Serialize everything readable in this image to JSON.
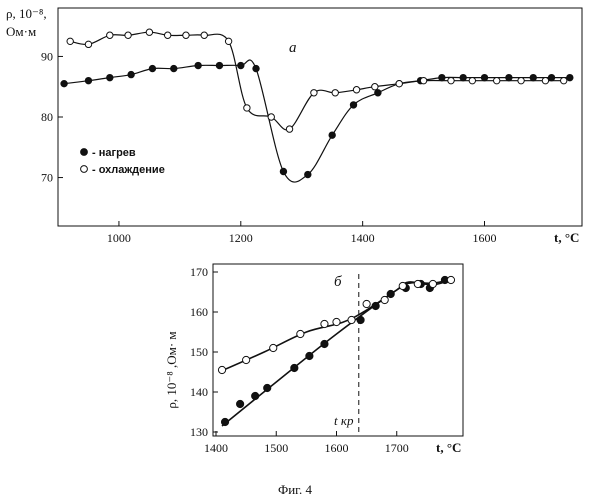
{
  "chart_data": [
    {
      "type": "scatter",
      "panel_label": "a",
      "ylabel_line1": "ρ, 10⁻⁸,",
      "ylabel_line2": "Ом·м",
      "xlabel": "t, °C",
      "xlim": [
        900,
        1760
      ],
      "ylim": [
        62,
        98
      ],
      "xticks": [
        1000,
        1200,
        1400,
        1600
      ],
      "yticks": [
        70,
        80,
        90
      ],
      "grid": false,
      "legend": [
        {
          "marker": "filled",
          "label": "- нагрев"
        },
        {
          "marker": "open",
          "label": "- охлаждение"
        }
      ],
      "series": [
        {
          "name": "нагрев",
          "marker": "filled",
          "x": [
            910,
            950,
            985,
            1020,
            1055,
            1090,
            1130,
            1165,
            1200,
            1225,
            1270,
            1310,
            1350,
            1385,
            1425,
            1460,
            1495,
            1530,
            1565,
            1600,
            1640,
            1680,
            1710,
            1740
          ],
          "y": [
            85.5,
            86,
            86.5,
            87,
            88,
            88,
            88.5,
            88.5,
            88.5,
            88,
            71,
            70.5,
            77,
            82,
            84,
            85.5,
            86,
            86.5,
            86.5,
            86.5,
            86.5,
            86.5,
            86.5,
            86.5
          ]
        },
        {
          "name": "охлаждение",
          "marker": "open",
          "x": [
            920,
            950,
            985,
            1015,
            1050,
            1080,
            1110,
            1140,
            1180,
            1210,
            1250,
            1280,
            1320,
            1355,
            1390,
            1420,
            1460,
            1500,
            1545,
            1580,
            1620,
            1660,
            1700,
            1730
          ],
          "y": [
            92.5,
            92,
            93.5,
            93.5,
            94,
            93.5,
            93.5,
            93.5,
            92.5,
            81.5,
            80,
            78,
            84,
            84,
            84.5,
            85,
            85.5,
            86,
            86,
            86,
            86,
            86,
            86,
            86
          ]
        }
      ]
    },
    {
      "type": "scatter",
      "panel_label": "б",
      "ylabel": "ρ, 10⁻⁸ ,Ом· м",
      "xlabel": "t, °C",
      "xlim": [
        1395,
        1810
      ],
      "ylim": [
        129,
        172
      ],
      "xticks": [
        1400,
        1500,
        1600,
        1700
      ],
      "yticks": [
        130,
        140,
        150,
        160,
        170
      ],
      "grid": false,
      "annotation": "t кр",
      "critical_temperature": 1637,
      "series": [
        {
          "name": "нагрев",
          "marker": "filled",
          "x": [
            1415,
            1440,
            1465,
            1485,
            1530,
            1555,
            1580,
            1640,
            1665,
            1690,
            1715,
            1740,
            1755,
            1780
          ],
          "y": [
            132.5,
            137,
            139,
            141,
            146,
            149,
            152,
            158,
            161.5,
            164.5,
            166,
            167,
            166,
            168
          ]
        },
        {
          "name": "охлаждение",
          "marker": "open",
          "x": [
            1410,
            1450,
            1495,
            1540,
            1580,
            1600,
            1625,
            1650,
            1680,
            1710,
            1735,
            1760,
            1790
          ],
          "y": [
            145.5,
            148,
            151,
            154.5,
            157,
            157.5,
            158,
            162,
            163,
            166.5,
            167,
            167,
            168
          ]
        }
      ]
    }
  ],
  "figure_caption": "Фиг. 4"
}
